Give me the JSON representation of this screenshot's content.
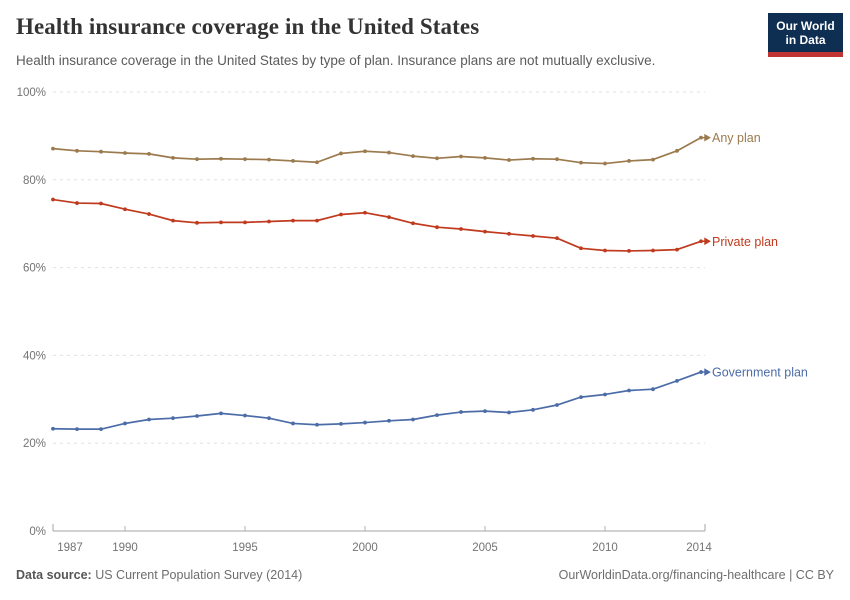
{
  "header": {
    "title": "Health insurance coverage in the United States",
    "subtitle": "Health insurance coverage in the United States by type of plan. Insurance plans are not mutually exclusive.",
    "logo": {
      "line1": "Our World",
      "line2": "in Data",
      "bg_color": "#0e2e52",
      "bar_color": "#c03434"
    }
  },
  "chart_data": {
    "type": "line",
    "title": "Health insurance coverage in the United States",
    "xlabel": "",
    "ylabel": "",
    "ylim": [
      0,
      100
    ],
    "grid": "horizontal-dashed",
    "legend_position": "right-of-line-ends",
    "x": [
      1987,
      1988,
      1989,
      1990,
      1991,
      1992,
      1993,
      1994,
      1995,
      1996,
      1997,
      1998,
      1999,
      2000,
      2001,
      2002,
      2003,
      2004,
      2005,
      2006,
      2007,
      2008,
      2009,
      2010,
      2011,
      2012,
      2013,
      2014
    ],
    "series": [
      {
        "name": "Any plan",
        "color": "#9b7a4d",
        "values": [
          87.1,
          86.6,
          86.4,
          86.1,
          85.9,
          85.0,
          84.7,
          84.8,
          84.7,
          84.6,
          84.3,
          84.0,
          86.0,
          86.5,
          86.2,
          85.4,
          84.9,
          85.3,
          85.0,
          84.5,
          84.8,
          84.7,
          83.9,
          83.7,
          84.3,
          84.6,
          86.6,
          89.6
        ]
      },
      {
        "name": "Private plan",
        "color": "#c03a1e",
        "values": [
          75.5,
          74.7,
          74.6,
          73.3,
          72.2,
          70.7,
          70.2,
          70.3,
          70.3,
          70.5,
          70.7,
          70.7,
          72.1,
          72.5,
          71.5,
          70.1,
          69.2,
          68.8,
          68.2,
          67.7,
          67.2,
          66.7,
          64.4,
          63.9,
          63.8,
          63.9,
          64.1,
          66.0
        ]
      },
      {
        "name": "Government plan",
        "color": "#4c6ca8",
        "values": [
          23.3,
          23.2,
          23.2,
          24.5,
          25.4,
          25.7,
          26.2,
          26.8,
          26.3,
          25.7,
          24.5,
          24.2,
          24.4,
          24.7,
          25.1,
          25.4,
          26.4,
          27.1,
          27.3,
          27.0,
          27.6,
          28.7,
          30.5,
          31.1,
          32.0,
          32.3,
          34.2,
          36.2
        ]
      }
    ],
    "y_ticks": [
      {
        "value": 0,
        "label": "0%"
      },
      {
        "value": 20,
        "label": "20%"
      },
      {
        "value": 40,
        "label": "40%"
      },
      {
        "value": 60,
        "label": "60%"
      },
      {
        "value": 80,
        "label": "80%"
      },
      {
        "value": 100,
        "label": "100%"
      }
    ],
    "x_ticks": [
      {
        "value": 1987,
        "label": "1987"
      },
      {
        "value": 1990,
        "label": "1990"
      },
      {
        "value": 1995,
        "label": "1995"
      },
      {
        "value": 2000,
        "label": "2000"
      },
      {
        "value": 2005,
        "label": "2005"
      },
      {
        "value": 2010,
        "label": "2010"
      },
      {
        "value": 2014,
        "label": "2014"
      }
    ]
  },
  "footer": {
    "source_label": "Data source:",
    "source_text": " US Current Population Survey (2014)",
    "right_text": "OurWorldinData.org/financing-healthcare | CC BY"
  }
}
